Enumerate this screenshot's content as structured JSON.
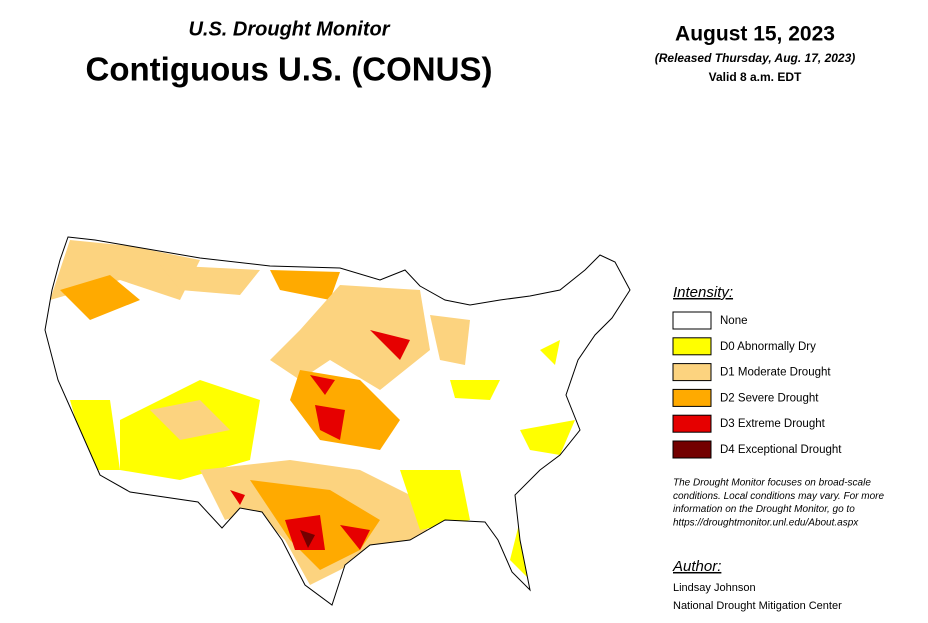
{
  "header": {
    "title": "U.S. Drought Monitor",
    "subtitle": "Contiguous U.S. (CONUS)"
  },
  "date": {
    "date": "August 15, 2023",
    "released": "(Released Thursday, Aug. 17, 2023)",
    "valid": "Valid 8 a.m. EDT"
  },
  "legend": {
    "title": "Intensity:",
    "items": [
      {
        "label": "None",
        "color": "#ffffff"
      },
      {
        "label": "D0 Abnormally Dry",
        "color": "#ffff00"
      },
      {
        "label": "D1 Moderate Drought",
        "color": "#fcd37f"
      },
      {
        "label": "D2 Severe Drought",
        "color": "#ffaa00"
      },
      {
        "label": "D3 Extreme Drought",
        "color": "#e60000"
      },
      {
        "label": "D4 Exceptional Drought",
        "color": "#730000"
      }
    ]
  },
  "note": [
    "The Drought Monitor focuses on broad-scale",
    "conditions. Local conditions may vary. For more",
    "information on the Drought Monitor, go to",
    "https://droughtmonitor.unl.edu/About.aspx"
  ],
  "author": {
    "title": "Author:",
    "lines": [
      "Lindsay Johnson",
      "National Drought Mitigation Center"
    ]
  }
}
